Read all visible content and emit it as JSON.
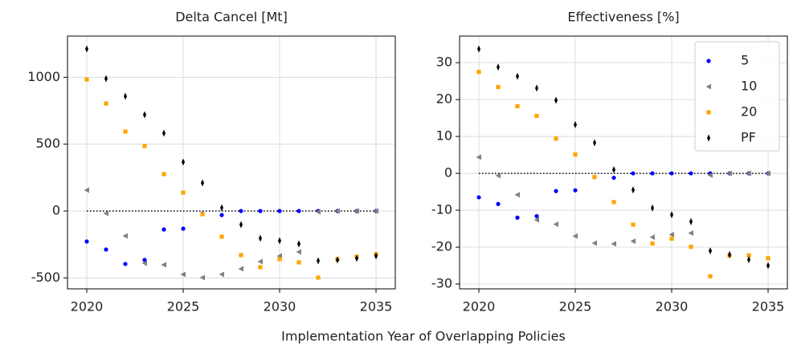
{
  "xlabel": "Implementation Year of Overlapping Policies",
  "chart_data": [
    {
      "type": "scatter",
      "title": "Delta Cancel [Mt]",
      "x": [
        2020,
        2021,
        2022,
        2023,
        2024,
        2025,
        2026,
        2027,
        2028,
        2029,
        2030,
        2031,
        2032,
        2033,
        2034,
        2035
      ],
      "xlim": [
        2019,
        2036
      ],
      "xticks": [
        2020,
        2025,
        2030,
        2035
      ],
      "ylim": [
        -582,
        1308
      ],
      "yticks": [
        -500,
        0,
        500,
        1000
      ],
      "grid": true,
      "reference_line": 0,
      "series": [
        {
          "name": "5",
          "color": "#0000ff",
          "marker": "circle",
          "values": [
            -228,
            -288,
            -396,
            -366,
            -138,
            -132,
            -20,
            -30,
            0,
            0,
            0,
            0,
            0,
            0,
            0,
            0
          ]
        },
        {
          "name": "10",
          "color": "#808080",
          "marker": "triangle-left",
          "values": [
            156,
            -18,
            -186,
            -390,
            -402,
            -474,
            -498,
            -474,
            -432,
            -378,
            -336,
            -306,
            -6,
            0,
            0,
            0
          ]
        },
        {
          "name": "20",
          "color": "#ffa500",
          "marker": "square",
          "values": [
            984,
            804,
            594,
            486,
            276,
            138,
            -24,
            -192,
            -330,
            -420,
            -360,
            -384,
            -498,
            -360,
            -342,
            -324
          ]
        },
        {
          "name": "PF",
          "color": "#000000",
          "marker": "thin-diamond",
          "values": [
            1212,
            990,
            858,
            720,
            582,
            366,
            210,
            24,
            -102,
            -204,
            -222,
            -246,
            -372,
            -366,
            -354,
            -336
          ]
        }
      ]
    },
    {
      "type": "scatter",
      "title": "Effectiveness [%]",
      "x": [
        2020,
        2021,
        2022,
        2023,
        2024,
        2025,
        2026,
        2027,
        2028,
        2029,
        2030,
        2031,
        2032,
        2033,
        2034,
        2035
      ],
      "xlim": [
        2019,
        2036
      ],
      "xticks": [
        2020,
        2025,
        2030,
        2035
      ],
      "ylim": [
        -31.3,
        37.2
      ],
      "yticks": [
        -30,
        -20,
        -10,
        0,
        10,
        20,
        30
      ],
      "grid": true,
      "reference_line": 0,
      "legend": "upper right",
      "series": [
        {
          "name": "5",
          "color": "#0000ff",
          "marker": "circle",
          "values": [
            -6.5,
            -8.3,
            -12,
            -11.6,
            -4.8,
            -4.6,
            -1,
            -1.2,
            0,
            0,
            0,
            0,
            0,
            0,
            0,
            0
          ]
        },
        {
          "name": "10",
          "color": "#808080",
          "marker": "triangle-left",
          "values": [
            4.4,
            -0.6,
            -5.8,
            -12.6,
            -13.8,
            -17,
            -18.9,
            -19.1,
            -18.4,
            -17.3,
            -16.6,
            -16.2,
            -0.5,
            0,
            0,
            0
          ]
        },
        {
          "name": "20",
          "color": "#ffa500",
          "marker": "square",
          "values": [
            27.5,
            23.4,
            18.2,
            15.6,
            9.4,
            5.1,
            -1,
            -7.8,
            -13.9,
            -19,
            -17.7,
            -19.9,
            -27.9,
            -22.3,
            -22.2,
            -23
          ]
        },
        {
          "name": "PF",
          "color": "#000000",
          "marker": "thin-diamond",
          "values": [
            33.7,
            28.8,
            26.3,
            23.1,
            19.8,
            13.2,
            8.3,
            1,
            -4.5,
            -9.4,
            -11.2,
            -13.1,
            -21,
            -22,
            -23.4,
            -25
          ]
        }
      ]
    }
  ]
}
